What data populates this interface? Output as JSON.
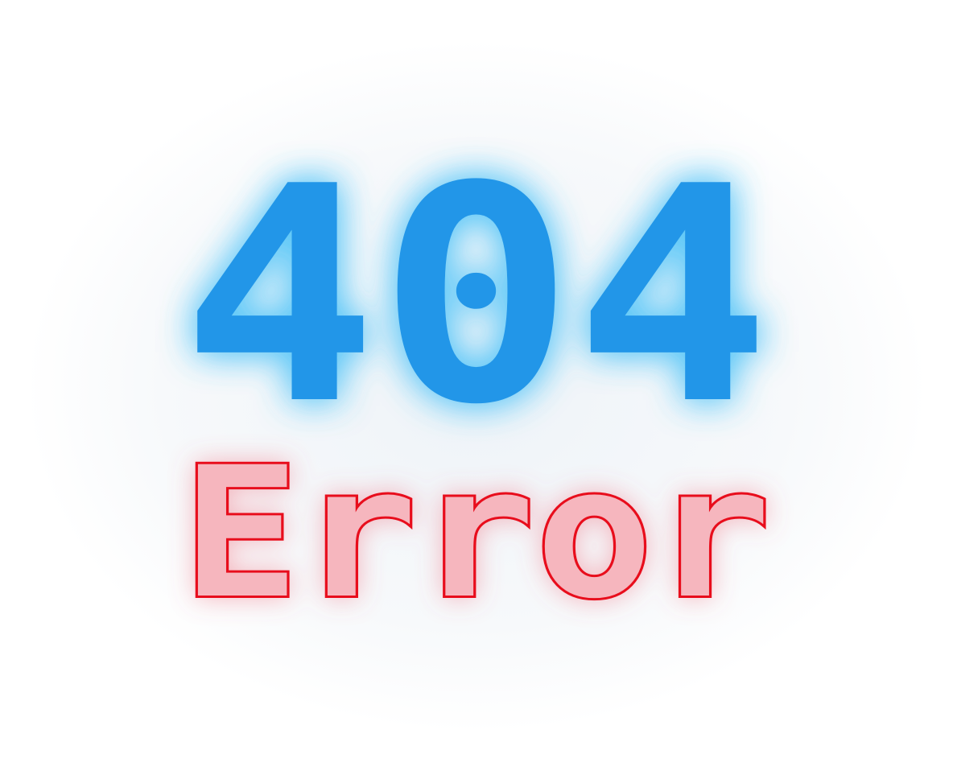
{
  "code": "404",
  "message": "Error"
}
